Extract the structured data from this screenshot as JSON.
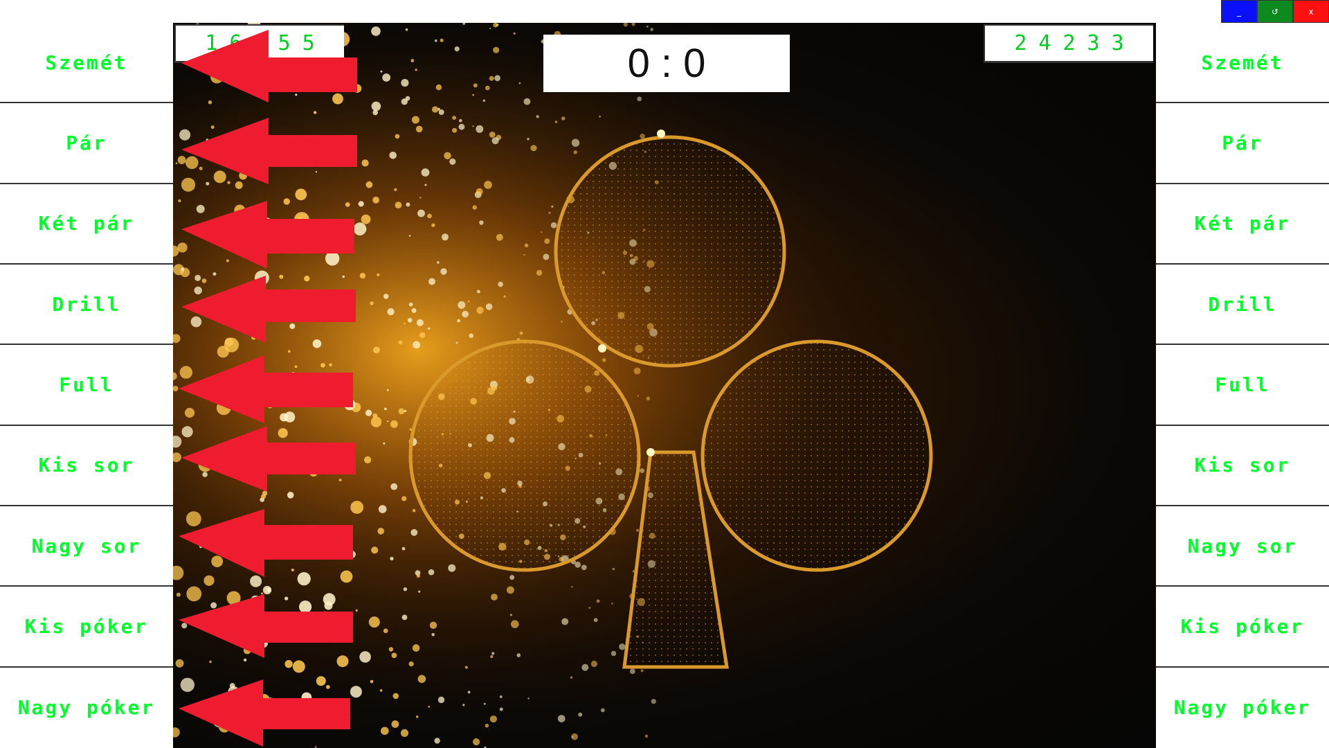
{
  "window_controls": {
    "minimize": "_",
    "restart": "↺",
    "close": "x",
    "colors": {
      "minimize": "#0a10ff",
      "restart": "#0c8a1e",
      "close": "#ff1010"
    }
  },
  "left_player": {
    "dice": [
      "1",
      "6",
      "6",
      "5",
      "5"
    ],
    "categories": [
      "Szemét",
      "Pár",
      "Két pár",
      "Drill",
      "Full",
      "Kis sor",
      "Nagy sor",
      "Kis póker",
      "Nagy póker"
    ]
  },
  "right_player": {
    "dice": [
      "2",
      "4",
      "2",
      "3",
      "3"
    ],
    "categories": [
      "Szemét",
      "Pár",
      "Két pár",
      "Drill",
      "Full",
      "Kis sor",
      "Nagy sor",
      "Kis póker",
      "Nagy póker"
    ]
  },
  "score": "0 : 0",
  "colors": {
    "label_green": "#00ff2a",
    "arrow_red": "#ee1c2e",
    "gold": "#d99a2b"
  },
  "background_icon": "club-suit-icon",
  "arrow_icon": "left-arrow-icon"
}
